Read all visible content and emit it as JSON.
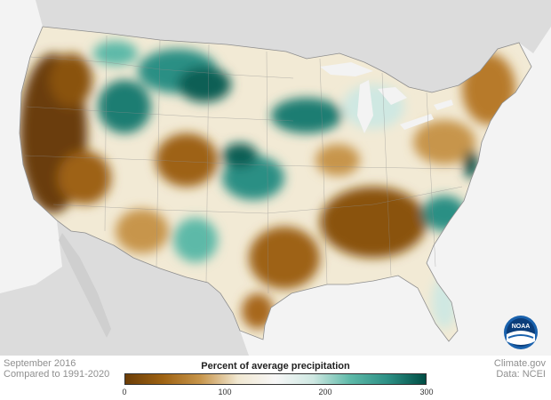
{
  "map": {
    "subtitle_left": "September 2016",
    "subtitle_left_2": "Compared to 1991-2020",
    "source_site": "Climate.gov",
    "source_data": "Data: NCEI",
    "logo_text": "NOAA"
  },
  "legend": {
    "title": "Percent of average precipitation",
    "ticks": [
      "0",
      "100",
      "200",
      "300"
    ],
    "colors": {
      "dry_dark": "#6b3d07",
      "dry": "#9e6212",
      "dry_light": "#c7954b",
      "near_normal": "#f1e8d2",
      "normal": "#f7f7f7",
      "wet_light": "#cfe8e2",
      "wet": "#5db9a8",
      "wet_mid": "#2c8f84",
      "wet_dark": "#004d44"
    }
  }
}
